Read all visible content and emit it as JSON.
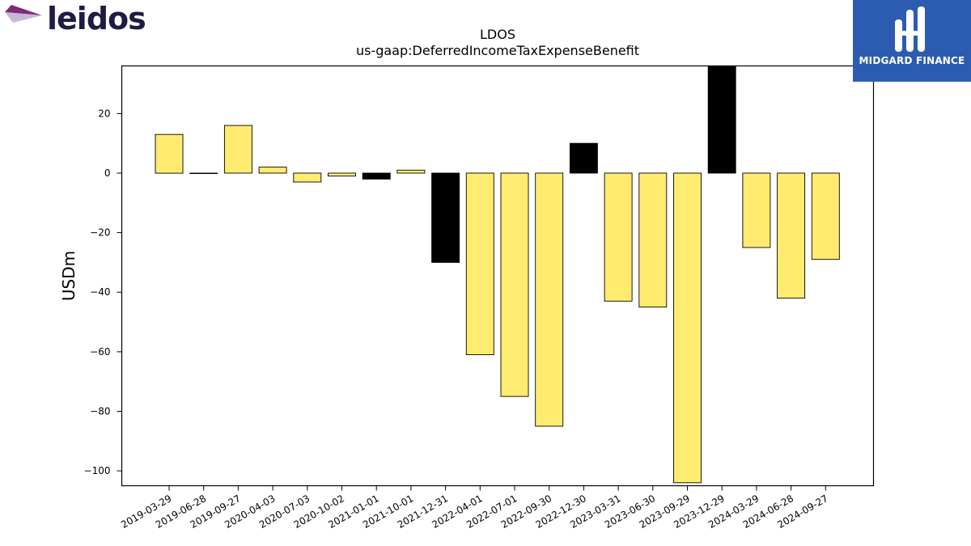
{
  "company_logo": {
    "text": "leidos"
  },
  "brand_badge": {
    "text": "MIDGARD FINANCE",
    "color": "#2c5cb0"
  },
  "colors": {
    "positive_bar": "#000000",
    "negative_bar": "#000000",
    "yellow_bar": "#ffeb70",
    "black_bar": "#000000"
  },
  "chart_data": {
    "type": "bar",
    "title": "LDOS",
    "subtitle": "us-gaap:DeferredIncomeTaxExpenseBenefit",
    "xlabel": "",
    "ylabel": "USDm",
    "ylim": [
      -105,
      36
    ],
    "yticks": [
      20,
      0,
      -20,
      -40,
      -60,
      -80,
      -100
    ],
    "ytick_labels": [
      "20",
      "0",
      "−20",
      "−40",
      "−60",
      "−80",
      "−100"
    ],
    "grid": false,
    "categories": [
      "2019-03-29",
      "2019-06-28",
      "2019-09-27",
      "2020-04-03",
      "2020-07-03",
      "2020-10-02",
      "2021-01-01",
      "2021-10-01",
      "2021-12-31",
      "2022-04-01",
      "2022-07-01",
      "2022-09-30",
      "2022-12-30",
      "2023-03-31",
      "2023-06-30",
      "2023-09-29",
      "2023-12-29",
      "2024-03-29",
      "2024-06-28",
      "2024-09-27"
    ],
    "values": [
      13,
      0,
      16,
      2,
      -3,
      -1,
      -2,
      1,
      -30,
      -61,
      -75,
      -85,
      10,
      -43,
      -45,
      -104,
      36,
      -25,
      -42,
      -29
    ],
    "bar_colors": [
      "yellow",
      "yellow",
      "yellow",
      "yellow",
      "yellow",
      "yellow",
      "black",
      "yellow",
      "black",
      "yellow",
      "yellow",
      "yellow",
      "black",
      "yellow",
      "yellow",
      "yellow",
      "black",
      "yellow",
      "yellow",
      "yellow"
    ]
  }
}
